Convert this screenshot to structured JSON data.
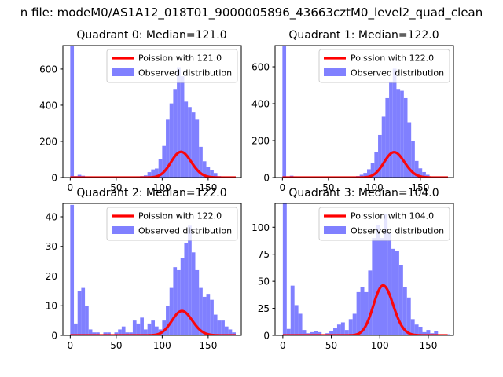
{
  "figure": {
    "suptitle": "n file: modeM0/AS1A12_018T01_9000005896_43663cztM0_level2_quad_clean",
    "colors": {
      "histogram": "#8080ff",
      "poisson_line": "#ff0000",
      "axes": "#000000",
      "background": "#ffffff"
    }
  },
  "chart_data": [
    {
      "type": "bar",
      "title": "Quadrant 0: Median=121.0",
      "median": 121.0,
      "xlim": [
        -8,
        186
      ],
      "ylim": [
        0,
        730
      ],
      "xticks": [
        0,
        50,
        100,
        150
      ],
      "yticks": [
        0,
        200,
        400,
        600
      ],
      "bin_width": 4,
      "legend_position": "upper right",
      "series": [
        {
          "name": "Observed distribution",
          "bins": [
            0,
            4,
            8,
            12,
            16,
            20,
            24,
            28,
            32,
            36,
            40,
            44,
            48,
            52,
            56,
            60,
            64,
            68,
            72,
            76,
            80,
            84,
            88,
            92,
            96,
            100,
            104,
            108,
            112,
            116,
            120,
            124,
            128,
            132,
            136,
            140,
            144,
            148,
            152,
            156,
            160,
            164,
            168,
            172,
            176
          ],
          "values": [
            730,
            8,
            15,
            10,
            6,
            5,
            3,
            3,
            2,
            2,
            2,
            2,
            2,
            2,
            2,
            2,
            2,
            3,
            5,
            8,
            12,
            30,
            45,
            50,
            100,
            175,
            320,
            410,
            490,
            610,
            560,
            420,
            390,
            360,
            320,
            170,
            90,
            60,
            40,
            25,
            8,
            5,
            3,
            2,
            1
          ]
        },
        {
          "name": "Poission with 121.0",
          "type": "line",
          "mean": 121.0,
          "scale": 3924
        }
      ]
    },
    {
      "type": "bar",
      "title": "Quadrant 1: Median=122.0",
      "median": 122.0,
      "xlim": [
        -8,
        186
      ],
      "ylim": [
        0,
        715
      ],
      "xticks": [
        0,
        50,
        100,
        150
      ],
      "yticks": [
        0,
        200,
        400,
        600
      ],
      "bin_width": 4,
      "legend_position": "upper right",
      "series": [
        {
          "name": "Observed distribution",
          "bins": [
            0,
            4,
            8,
            12,
            16,
            20,
            24,
            28,
            32,
            36,
            40,
            44,
            48,
            52,
            56,
            60,
            64,
            68,
            72,
            76,
            80,
            84,
            88,
            92,
            96,
            100,
            104,
            108,
            112,
            116,
            120,
            124,
            128,
            132,
            136,
            140,
            144,
            148,
            152,
            156,
            160,
            164,
            168,
            172,
            176
          ],
          "values": [
            715,
            6,
            10,
            6,
            4,
            3,
            2,
            2,
            2,
            2,
            2,
            2,
            2,
            2,
            2,
            2,
            2,
            2,
            3,
            5,
            8,
            15,
            25,
            45,
            80,
            140,
            230,
            330,
            430,
            520,
            590,
            480,
            470,
            430,
            300,
            200,
            90,
            50,
            30,
            15,
            5,
            3,
            2,
            1,
            1
          ]
        },
        {
          "name": "Poission with 122.0",
          "type": "line",
          "mean": 122.0,
          "scale": 3812
        }
      ]
    },
    {
      "type": "bar",
      "title": "Quadrant 2: Median=122.0",
      "median": 122.0,
      "xlim": [
        -8,
        186
      ],
      "ylim": [
        0,
        44.5
      ],
      "xticks": [
        0,
        50,
        100,
        150
      ],
      "yticks": [
        0,
        10,
        20,
        30,
        40
      ],
      "bin_width": 4,
      "legend_position": "upper right",
      "series": [
        {
          "name": "Observed distribution",
          "bins": [
            0,
            4,
            8,
            12,
            16,
            20,
            24,
            28,
            32,
            36,
            40,
            44,
            48,
            52,
            56,
            60,
            64,
            68,
            72,
            76,
            80,
            84,
            88,
            92,
            96,
            100,
            104,
            108,
            112,
            116,
            120,
            124,
            128,
            132,
            136,
            140,
            144,
            148,
            152,
            156,
            160,
            164,
            168,
            172,
            176
          ],
          "values": [
            44,
            4,
            15,
            16,
            10,
            2,
            1,
            1,
            0,
            1,
            1,
            0,
            1,
            2,
            3,
            1,
            1,
            5,
            4,
            6,
            2,
            4,
            5,
            3,
            2,
            5,
            10,
            16,
            23,
            22,
            26,
            31,
            37,
            28,
            22,
            16,
            13,
            14,
            12,
            7,
            5,
            5,
            3,
            2,
            1
          ]
        },
        {
          "name": "Poission with 122.0",
          "type": "line",
          "mean": 122.0,
          "scale": 228
        }
      ]
    },
    {
      "type": "bar",
      "title": "Quadrant 3: Median=104.0",
      "median": 104.0,
      "xlim": [
        -8,
        176
      ],
      "ylim": [
        0,
        122
      ],
      "xticks": [
        0,
        50,
        100,
        150
      ],
      "yticks": [
        0,
        25,
        50,
        75,
        100
      ],
      "bin_width": 4,
      "legend_position": "upper right",
      "series": [
        {
          "name": "Observed distribution",
          "bins": [
            0,
            4,
            8,
            12,
            16,
            20,
            24,
            28,
            32,
            36,
            40,
            44,
            48,
            52,
            56,
            60,
            64,
            68,
            72,
            76,
            80,
            84,
            88,
            92,
            96,
            100,
            104,
            108,
            112,
            116,
            120,
            124,
            128,
            132,
            136,
            140,
            144,
            148,
            152,
            156,
            160,
            164,
            168
          ],
          "values": [
            122,
            6,
            46,
            28,
            20,
            5,
            2,
            3,
            4,
            3,
            1,
            2,
            4,
            7,
            10,
            12,
            5,
            15,
            20,
            40,
            45,
            40,
            60,
            90,
            102,
            90,
            112,
            95,
            80,
            78,
            65,
            45,
            35,
            15,
            10,
            8,
            3,
            5,
            2,
            4,
            1,
            1,
            1
          ]
        },
        {
          "name": "Poission with 104.0",
          "type": "line",
          "mean": 104.0,
          "scale": 1180
        }
      ]
    }
  ]
}
